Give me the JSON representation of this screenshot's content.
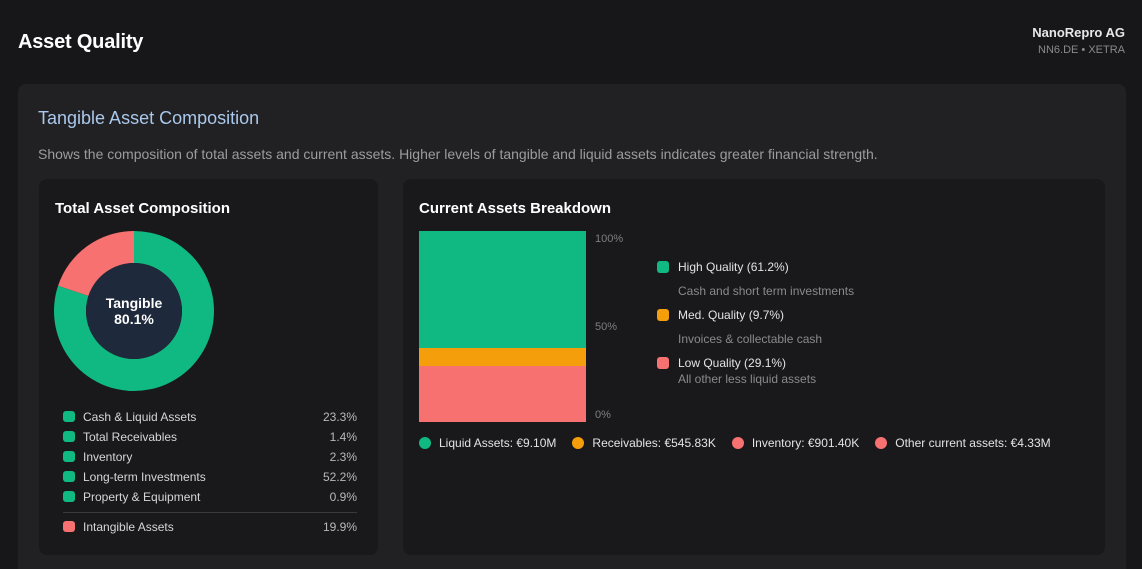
{
  "header": {
    "title": "Asset Quality",
    "company_name": "NanoRepro AG",
    "company_ticker": "NN6.DE • XETRA"
  },
  "panel": {
    "title": "Tangible Asset Composition",
    "description": "Shows the composition of total assets and current assets. Higher levels of tangible and liquid assets indicates greater financial strength."
  },
  "total_asset_card": {
    "title": "Total Asset Composition",
    "center_label": "Tangible",
    "center_value": "80.1%",
    "tangible_color": "#10b981",
    "intangible_color": "#f87171",
    "items": [
      {
        "label": "Cash & Liquid Assets",
        "value": "23.3%",
        "color": "#10b981"
      },
      {
        "label": "Total Receivables",
        "value": "1.4%",
        "color": "#10b981"
      },
      {
        "label": "Inventory",
        "value": "2.3%",
        "color": "#10b981"
      },
      {
        "label": "Long-term Investments",
        "value": "52.2%",
        "color": "#10b981"
      },
      {
        "label": "Property & Equipment",
        "value": "0.9%",
        "color": "#10b981"
      }
    ],
    "intangible": {
      "label": "Intangible Assets",
      "value": "19.9%",
      "color": "#f87171"
    }
  },
  "current_assets_card": {
    "title": "Current Assets Breakdown",
    "axis": {
      "top": "100%",
      "mid": "50%",
      "bottom": "0%"
    },
    "quality": [
      {
        "title": "High Quality (61.2%)",
        "sub": "Cash and short term investments",
        "color": "#10b981"
      },
      {
        "title": "Med. Quality (9.7%)",
        "sub": "Invoices & collectable cash",
        "color": "#f59e0b"
      },
      {
        "title": "Low Quality (29.1%)",
        "sub": "All other less liquid assets",
        "color": "#f87171"
      }
    ],
    "legend": [
      {
        "label": "Liquid Assets: €9.10M",
        "color": "#10b981"
      },
      {
        "label": "Receivables: €545.83K",
        "color": "#f59e0b"
      },
      {
        "label": "Inventory: €901.40K",
        "color": "#f87171"
      },
      {
        "label": "Other current assets: €4.33M",
        "color": "#f87171"
      }
    ]
  },
  "chart_data": [
    {
      "type": "pie",
      "title": "Total Asset Composition",
      "categories": [
        "Tangible",
        "Intangible"
      ],
      "values": [
        80.1,
        19.9
      ],
      "colors": [
        "#10b981",
        "#f87171"
      ]
    },
    {
      "type": "bar",
      "title": "Current Assets Breakdown",
      "stacked": true,
      "categories": [
        ""
      ],
      "series": [
        {
          "name": "High Quality",
          "values": [
            61.2
          ],
          "color": "#10b981"
        },
        {
          "name": "Med. Quality",
          "values": [
            9.7
          ],
          "color": "#f59e0b"
        },
        {
          "name": "Low Quality",
          "values": [
            29.1
          ],
          "color": "#f87171"
        }
      ],
      "ylim": [
        0,
        100
      ],
      "yticks": [
        "0%",
        "50%",
        "100%"
      ]
    }
  ]
}
